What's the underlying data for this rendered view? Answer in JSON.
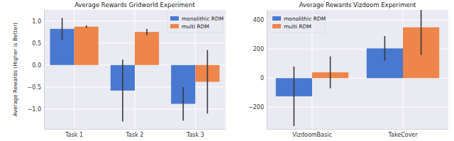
{
  "chart_data": [
    {
      "type": "bar",
      "title": "Average Rewards Gridworld Experiment",
      "y_label": "Average Rewards (Higher is Better)",
      "categories": [
        "Task 1",
        "Task 2",
        "Task 3"
      ],
      "series": [
        {
          "name": "monolithic RDM",
          "color": "#4878d0",
          "values": [
            0.82,
            -0.58,
            -0.88
          ],
          "errors": [
            0.25,
            0.7,
            0.38
          ]
        },
        {
          "name": "multi RDM",
          "color": "#ee854a",
          "values": [
            0.87,
            0.75,
            -0.38
          ],
          "errors": [
            0.03,
            0.07,
            0.72
          ]
        }
      ],
      "ylim": [
        -1.45,
        1.25
      ],
      "yticks": [
        {
          "value": -1.0,
          "label": "−1.0"
        },
        {
          "value": -0.5,
          "label": "−0.5"
        },
        {
          "value": 0,
          "label": "0.0"
        },
        {
          "value": 0.5,
          "label": "0.5"
        },
        {
          "value": 1.0,
          "label": "1.0"
        }
      ],
      "grid": true,
      "legend": "upper right"
    },
    {
      "type": "bar",
      "title": "Average Rewards Vizdoom Experiment",
      "categories": [
        "VizdoomBasic",
        "TakeCover"
      ],
      "series": [
        {
          "name": "monolithic RDM",
          "color": "#4878d0",
          "values": [
            -125,
            205
          ],
          "errors": [
            205,
            85
          ]
        },
        {
          "name": "multi RDM",
          "color": "#ee854a",
          "values": [
            40,
            350
          ],
          "errors": [
            110,
            190
          ]
        }
      ],
      "ylim": [
        -350,
        470
      ],
      "yticks": [
        {
          "value": -200,
          "label": "−200"
        },
        0,
        200,
        400
      ],
      "grid": true,
      "legend": "upper left"
    }
  ]
}
